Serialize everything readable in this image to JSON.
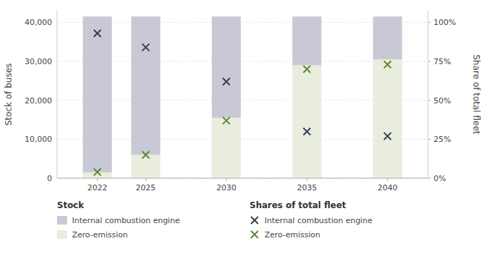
{
  "chart_data": {
    "type": "bar",
    "stacked": true,
    "grid": true,
    "legend": "bottom",
    "x": [
      2022,
      2025,
      2030,
      2035,
      2040
    ],
    "xlim": [
      2019.5,
      2042.5
    ],
    "xticks": [
      2022,
      2025,
      2030,
      2035,
      2040
    ],
    "ylabel": "Stock of buses",
    "ylim": [
      0,
      43000
    ],
    "yticks": [
      0,
      {
        "value": 10000,
        "label": "10,000"
      },
      {
        "value": 20000,
        "label": "20,000"
      },
      {
        "value": 30000,
        "label": "30,000"
      },
      {
        "value": 40000,
        "label": "40,000"
      }
    ],
    "y2label": "Share of total fleet",
    "y2lim": [
      0,
      1.075
    ],
    "y2ticks": [
      {
        "value": 0,
        "label": "0%"
      },
      {
        "value": 0.25,
        "label": "25%"
      },
      {
        "value": 0.5,
        "label": "50%"
      },
      {
        "value": 0.75,
        "label": "75%"
      },
      {
        "value": 1.0,
        "label": "100%"
      }
    ],
    "annotations": [
      "Stock",
      "Shares of total fleet"
    ],
    "series": [
      {
        "name": "Zero-emission",
        "type": "bar",
        "color": "#e8eddd",
        "values": [
          1500,
          6000,
          15500,
          29000,
          30500
        ]
      },
      {
        "name": "Internal combustion engine",
        "type": "bar",
        "color": "#c9c9d6",
        "values": [
          40000,
          35500,
          26000,
          12500,
          11000
        ]
      },
      {
        "name": "Internal combustion engine",
        "type": "scatter",
        "axis": "y2",
        "marker": "x",
        "color": "#3a3d4e",
        "values": [
          0.93,
          0.84,
          0.62,
          0.3,
          0.27
        ]
      },
      {
        "name": "Zero-emission",
        "type": "scatter",
        "axis": "y2",
        "marker": "x",
        "color": "#5a8a32",
        "values": [
          0.04,
          0.15,
          0.37,
          0.7,
          0.73
        ]
      }
    ]
  }
}
